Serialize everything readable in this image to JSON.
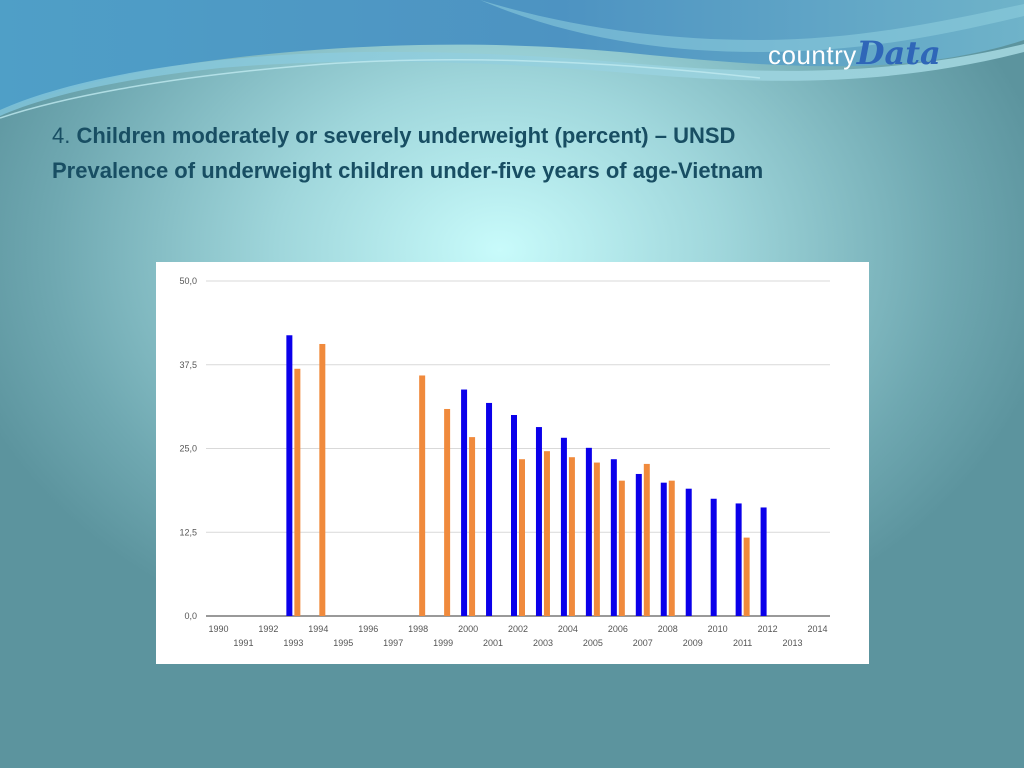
{
  "slide": {
    "title_num": "4. ",
    "title_line1": "Children moderately or severely underweight (percent) – UNSD",
    "title_line2": "Prevalence of underweight children under-five years of age-Vietnam"
  },
  "logo": {
    "part1": "country",
    "part2": "Data",
    "part2_color": "#2f66b8"
  },
  "chart_data": {
    "type": "bar",
    "title": "",
    "xlabel": "",
    "ylabel": "",
    "ylim": [
      0,
      50
    ],
    "yticks": [
      "0,0",
      "12,5",
      "25,0",
      "37,5",
      "50,0"
    ],
    "grid": true,
    "xlim": [
      1990,
      2014
    ],
    "xticks_upper": [
      "1990",
      "1992",
      "1994",
      "1996",
      "1998",
      "2000",
      "2002",
      "2004",
      "2006",
      "2008",
      "2010",
      "2012",
      "2014"
    ],
    "xticks_lower": [
      "1991",
      "1993",
      "1995",
      "1997",
      "1999",
      "2001",
      "2003",
      "2005",
      "2007",
      "2009",
      "2011",
      "2013"
    ],
    "series": [
      {
        "color": "#0b00ea",
        "points": [
          {
            "x": 1993,
            "y": 41.9
          },
          {
            "x": 2000,
            "y": 33.8
          },
          {
            "x": 2001,
            "y": 31.8
          },
          {
            "x": 2002,
            "y": 30.0
          },
          {
            "x": 2003,
            "y": 28.2
          },
          {
            "x": 2004,
            "y": 26.6
          },
          {
            "x": 2005,
            "y": 25.1
          },
          {
            "x": 2006,
            "y": 23.4
          },
          {
            "x": 2007,
            "y": 21.2
          },
          {
            "x": 2008,
            "y": 19.9
          },
          {
            "x": 2009,
            "y": 19.0
          },
          {
            "x": 2010,
            "y": 17.5
          },
          {
            "x": 2011,
            "y": 16.8
          },
          {
            "x": 2012,
            "y": 16.2
          }
        ]
      },
      {
        "color": "#f08a3c",
        "points": [
          {
            "x": 1993,
            "y": 36.9
          },
          {
            "x": 1994,
            "y": 40.6
          },
          {
            "x": 1998,
            "y": 35.9
          },
          {
            "x": 1999,
            "y": 30.9
          },
          {
            "x": 2000,
            "y": 26.7
          },
          {
            "x": 2002,
            "y": 23.4
          },
          {
            "x": 2003,
            "y": 24.6
          },
          {
            "x": 2004,
            "y": 23.7
          },
          {
            "x": 2005,
            "y": 22.9
          },
          {
            "x": 2006,
            "y": 20.2
          },
          {
            "x": 2007,
            "y": 22.7
          },
          {
            "x": 2008,
            "y": 20.2
          },
          {
            "x": 2011,
            "y": 11.7
          }
        ]
      }
    ]
  }
}
